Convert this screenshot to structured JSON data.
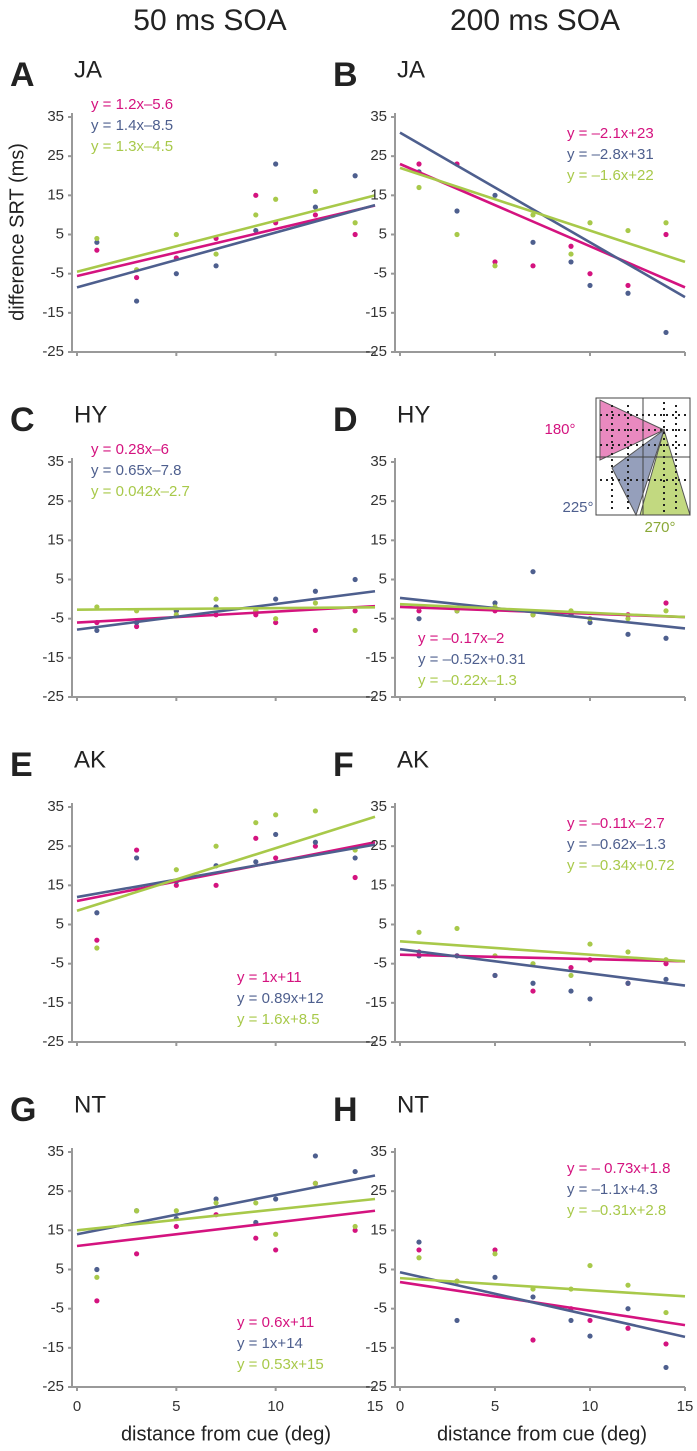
{
  "column_titles": [
    "50 ms SOA",
    "200 ms SOA"
  ],
  "y_label": "difference SRT (ms)",
  "x_label": "distance from cue (deg)",
  "inset": {
    "labels": [
      "180°",
      "225°",
      "270°"
    ]
  },
  "chart_data": [
    {
      "type": "scatter",
      "panel": "A",
      "subject": "JA",
      "legend": "upper left",
      "xlim": [
        0,
        15
      ],
      "xticks": [
        0,
        5,
        10,
        15
      ],
      "ylim": [
        -25,
        35
      ],
      "yticks": [
        -25,
        -15,
        -5,
        5,
        15,
        25,
        35
      ],
      "x": [
        1,
        3,
        5,
        7,
        9,
        10,
        12,
        14
      ],
      "fit_x": [
        0,
        15
      ],
      "series": [
        {
          "color": "#d4137f",
          "equation": "y = 1.2x–5.6",
          "values": [
            1,
            -6,
            -1,
            4,
            15,
            8,
            10,
            5
          ],
          "fit": [
            -5.6,
            12.4
          ]
        },
        {
          "color": "#4e5f8e",
          "equation": "y = 1.4x–8.5",
          "values": [
            3,
            -12,
            -5,
            -3,
            6,
            23,
            12,
            20
          ],
          "fit": [
            -8.5,
            12.5
          ]
        },
        {
          "color": "#a8c94a",
          "equation": "y = 1.3x–4.5",
          "values": [
            4,
            -4,
            5,
            0,
            10,
            14,
            16,
            8
          ],
          "fit": [
            -4.5,
            15
          ]
        }
      ]
    },
    {
      "type": "scatter",
      "panel": "B",
      "subject": "JA",
      "legend": "upper right",
      "xlim": [
        0,
        15
      ],
      "xticks": [
        0,
        5,
        10,
        15
      ],
      "ylim": [
        -25,
        35
      ],
      "yticks": [
        -25,
        -15,
        -5,
        5,
        15,
        25,
        35
      ],
      "x": [
        1,
        3,
        5,
        7,
        9,
        10,
        12,
        14
      ],
      "fit_x": [
        0,
        15
      ],
      "series": [
        {
          "color": "#d4137f",
          "equation": "y = –2.1x+23",
          "values": [
            23,
            23,
            -2,
            -3,
            2,
            -5,
            -8,
            5
          ],
          "fit": [
            23,
            -8.5
          ]
        },
        {
          "color": "#4e5f8e",
          "equation": "y = –2.8x+31",
          "values": [
            21,
            11,
            15,
            3,
            -2,
            -8,
            -10,
            -20
          ],
          "fit": [
            31,
            -11
          ]
        },
        {
          "color": "#a8c94a",
          "equation": "y = –1.6x+22",
          "values": [
            17,
            5,
            -3,
            10,
            0,
            8,
            6,
            8
          ],
          "fit": [
            22,
            -2
          ]
        }
      ]
    },
    {
      "type": "scatter",
      "panel": "C",
      "subject": "HY",
      "legend": "upper left",
      "xlim": [
        0,
        15
      ],
      "xticks": [
        0,
        5,
        10,
        15
      ],
      "ylim": [
        -25,
        35
      ],
      "yticks": [
        -25,
        -15,
        -5,
        5,
        15,
        25,
        35
      ],
      "x": [
        1,
        3,
        5,
        7,
        9,
        10,
        12,
        14
      ],
      "fit_x": [
        0,
        15
      ],
      "series": [
        {
          "color": "#d4137f",
          "equation": "y = 0.28x–6",
          "values": [
            -6,
            -7,
            -3,
            -4,
            -4,
            -6,
            -8,
            -3
          ],
          "fit": [
            -6,
            -1.8
          ]
        },
        {
          "color": "#4e5f8e",
          "equation": "y = 0.65x–7.8",
          "values": [
            -8,
            -6,
            -3,
            -2,
            -3,
            0,
            2,
            5
          ],
          "fit": [
            -7.8,
            2
          ]
        },
        {
          "color": "#a8c94a",
          "equation": "y = 0.042x–2.7",
          "values": [
            -2,
            -3,
            -4,
            0,
            -3,
            -5,
            -1,
            -8
          ],
          "fit": [
            -2.7,
            -2.1
          ]
        }
      ]
    },
    {
      "type": "scatter",
      "panel": "D",
      "subject": "HY",
      "legend": "lower left",
      "xlim": [
        0,
        15
      ],
      "xticks": [
        0,
        5,
        10,
        15
      ],
      "ylim": [
        -25,
        35
      ],
      "yticks": [
        -25,
        -15,
        -5,
        5,
        15,
        25,
        35
      ],
      "x": [
        1,
        3,
        5,
        7,
        9,
        10,
        12,
        14
      ],
      "fit_x": [
        0,
        15
      ],
      "series": [
        {
          "color": "#d4137f",
          "equation": "y = –0.17x–2",
          "values": [
            -3,
            -3,
            -3,
            -4,
            -4,
            -5,
            -4,
            -1
          ],
          "fit": [
            -2,
            -4.6
          ]
        },
        {
          "color": "#4e5f8e",
          "equation": "y = –0.52x+0.31",
          "values": [
            -5,
            -3,
            -1,
            7,
            -4,
            -6,
            -9,
            -10
          ],
          "fit": [
            0.3,
            -7.5
          ]
        },
        {
          "color": "#a8c94a",
          "equation": "y = –0.22x–1.3",
          "values": [
            -2,
            -3,
            -2,
            -4,
            -3,
            -5,
            -5,
            -3
          ],
          "fit": [
            -1.3,
            -4.6
          ]
        }
      ]
    },
    {
      "type": "scatter",
      "panel": "E",
      "subject": "AK",
      "legend": "lower right",
      "xlim": [
        0,
        15
      ],
      "xticks": [
        0,
        5,
        10,
        15
      ],
      "ylim": [
        -25,
        35
      ],
      "yticks": [
        -25,
        -15,
        -5,
        5,
        15,
        25,
        35
      ],
      "x": [
        1,
        3,
        5,
        7,
        9,
        10,
        12,
        14
      ],
      "fit_x": [
        0,
        15
      ],
      "series": [
        {
          "color": "#d4137f",
          "equation": "y = 1x+11",
          "values": [
            1,
            24,
            15,
            15,
            27,
            22,
            25,
            17
          ],
          "fit": [
            11,
            26
          ]
        },
        {
          "color": "#4e5f8e",
          "equation": "y = 0.89x+12",
          "values": [
            8,
            22,
            16,
            20,
            21,
            28,
            26,
            22
          ],
          "fit": [
            12,
            25.4
          ]
        },
        {
          "color": "#a8c94a",
          "equation": "y = 1.6x+8.5",
          "values": [
            -1,
            14,
            19,
            25,
            31,
            33,
            34,
            24
          ],
          "fit": [
            8.5,
            32.5
          ]
        }
      ]
    },
    {
      "type": "scatter",
      "panel": "F",
      "subject": "AK",
      "legend": "upper right",
      "xlim": [
        0,
        15
      ],
      "xticks": [
        0,
        5,
        10,
        15
      ],
      "ylim": [
        -25,
        35
      ],
      "yticks": [
        -25,
        -15,
        -5,
        5,
        15,
        25,
        35
      ],
      "x": [
        1,
        3,
        5,
        7,
        9,
        10,
        12,
        14
      ],
      "fit_x": [
        0,
        15
      ],
      "series": [
        {
          "color": "#d4137f",
          "equation": "y = –0.11x–2.7",
          "values": [
            -2,
            -3,
            -8,
            -12,
            -6,
            -4,
            -10,
            -5
          ],
          "fit": [
            -2.7,
            -4.4
          ]
        },
        {
          "color": "#4e5f8e",
          "equation": "y = –0.62x–1.3",
          "values": [
            -3,
            -3,
            -8,
            -10,
            -12,
            -14,
            -10,
            -9
          ],
          "fit": [
            -1.3,
            -10.6
          ]
        },
        {
          "color": "#a8c94a",
          "equation": "y = –0.34x+0.72",
          "values": [
            3,
            4,
            -3,
            -5,
            -8,
            0,
            -2,
            -4
          ],
          "fit": [
            0.7,
            -4.4
          ]
        }
      ]
    },
    {
      "type": "scatter",
      "panel": "G",
      "subject": "NT",
      "legend": "lower right",
      "xlim": [
        0,
        15
      ],
      "xticks": [
        0,
        5,
        10,
        15
      ],
      "ylim": [
        -25,
        35
      ],
      "yticks": [
        -25,
        -15,
        -5,
        5,
        15,
        25,
        35
      ],
      "x": [
        1,
        3,
        5,
        7,
        9,
        10,
        12,
        14
      ],
      "fit_x": [
        0,
        15
      ],
      "series": [
        {
          "color": "#d4137f",
          "equation": "y = 0.6x+11",
          "values": [
            -3,
            9,
            16,
            19,
            13,
            10,
            27,
            15
          ],
          "fit": [
            11,
            20
          ]
        },
        {
          "color": "#4e5f8e",
          "equation": "y = 1x+14",
          "values": [
            5,
            20,
            18,
            23,
            17,
            23,
            34,
            30
          ],
          "fit": [
            14,
            29
          ]
        },
        {
          "color": "#a8c94a",
          "equation": "y = 0.53x+15",
          "values": [
            3,
            20,
            20,
            22,
            22,
            14,
            27,
            16
          ],
          "fit": [
            15,
            23
          ]
        }
      ]
    },
    {
      "type": "scatter",
      "panel": "H",
      "subject": "NT",
      "legend": "upper right",
      "xlim": [
        0,
        15
      ],
      "xticks": [
        0,
        5,
        10,
        15
      ],
      "ylim": [
        -25,
        35
      ],
      "yticks": [
        -25,
        -15,
        -5,
        5,
        15,
        25,
        35
      ],
      "x": [
        1,
        3,
        5,
        7,
        9,
        10,
        12,
        14
      ],
      "fit_x": [
        0,
        15
      ],
      "series": [
        {
          "color": "#d4137f",
          "equation": "y = – 0.73x+1.8",
          "values": [
            10,
            2,
            10,
            -13,
            -5,
            -8,
            -10,
            -14
          ],
          "fit": [
            1.8,
            -9.2
          ]
        },
        {
          "color": "#4e5f8e",
          "equation": "y = –1.1x+4.3",
          "values": [
            12,
            -8,
            3,
            -2,
            -8,
            -12,
            -5,
            -20
          ],
          "fit": [
            4.3,
            -12.2
          ]
        },
        {
          "color": "#a8c94a",
          "equation": "y = –0.31x+2.8",
          "values": [
            8,
            2,
            9,
            0,
            0,
            6,
            1,
            -6
          ],
          "fit": [
            2.8,
            -1.85
          ]
        }
      ]
    }
  ]
}
